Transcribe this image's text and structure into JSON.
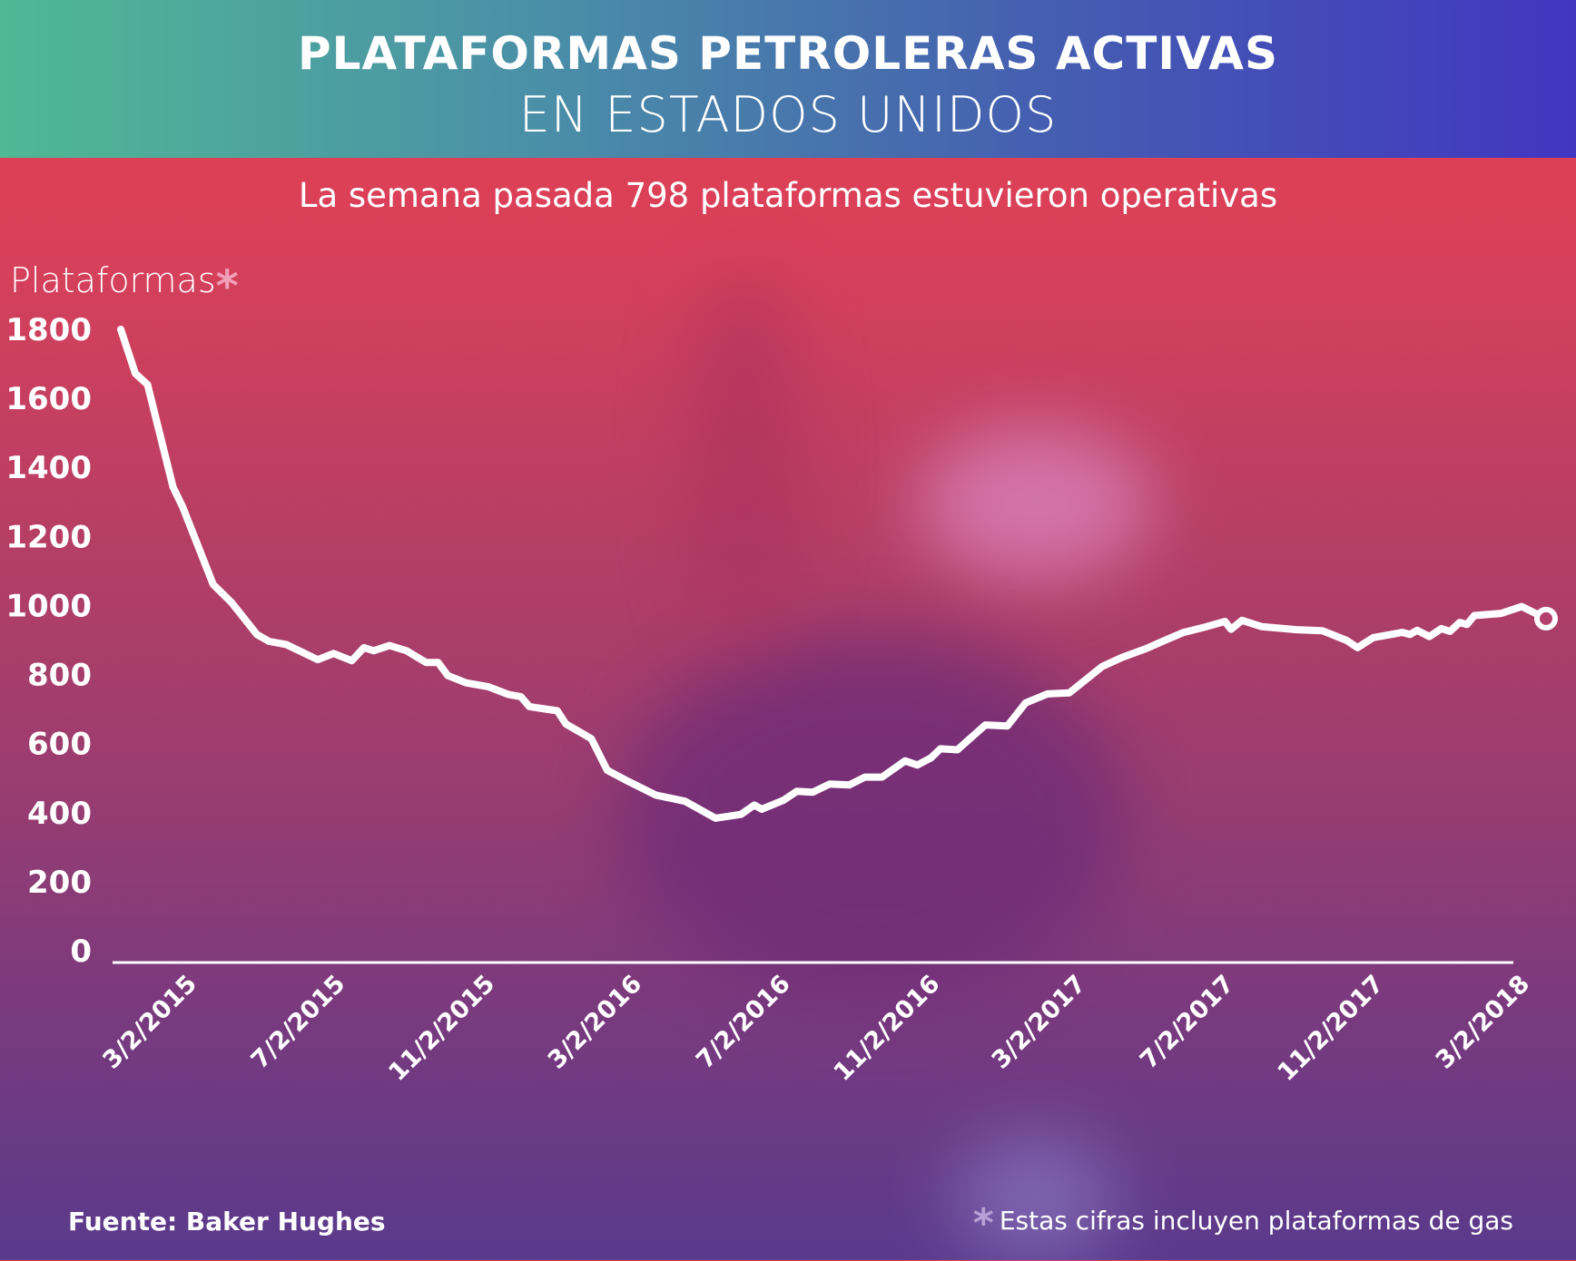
{
  "header": {
    "title_line1": "PLATAFORMAS PETROLERAS ACTIVAS",
    "title_line2": "EN ESTADOS UNIDOS"
  },
  "subtitle": "La semana pasada 798 plataformas estuvieron operativas",
  "footer": {
    "source": "Fuente: Baker Hughes",
    "note_marker": "*",
    "note": "Estas cifras incluyen plataformas de gas"
  },
  "colors": {
    "line": "#ffffff",
    "header_start": "#50b894",
    "header_end": "#4236c0",
    "background_top": "#e6404f",
    "background_bottom": "#5a3a8c"
  },
  "chart_data": {
    "type": "line",
    "title": "",
    "ylabel": "Plataformas",
    "ylabel_marker": "*",
    "xlabel": "",
    "ylim": [
      0,
      1800
    ],
    "yticks": [
      "0",
      "200",
      "400",
      "600",
      "800",
      "1000",
      "1200",
      "1400",
      "1600",
      "1800"
    ],
    "xticks": [
      "3/2/2015",
      "7/2/2015",
      "11/2/2015",
      "3/2/2016",
      "7/2/2016",
      "11/2/2016",
      "3/2/2017",
      "7/2/2017",
      "11/2/2017",
      "3/2/2018"
    ],
    "grid": false,
    "end_marker": "hollow-circle",
    "series": [
      {
        "points": [
          [
            "2015-01-02",
            1800
          ],
          [
            "2015-01-14",
            1672
          ],
          [
            "2015-01-24",
            1640
          ],
          [
            "2015-02-14",
            1343
          ],
          [
            "2015-02-22",
            1285
          ],
          [
            "2015-03-19",
            1061
          ],
          [
            "2015-04-03",
            1009
          ],
          [
            "2015-04-24",
            916
          ],
          [
            "2015-05-04",
            896
          ],
          [
            "2015-05-18",
            887
          ],
          [
            "2015-06-13",
            843
          ],
          [
            "2015-06-26",
            861
          ],
          [
            "2015-07-11",
            840
          ],
          [
            "2015-07-21",
            878
          ],
          [
            "2015-07-29",
            869
          ],
          [
            "2015-08-11",
            884
          ],
          [
            "2015-08-25",
            869
          ],
          [
            "2015-09-10",
            835
          ],
          [
            "2015-09-20",
            835
          ],
          [
            "2015-09-28",
            797
          ],
          [
            "2015-10-13",
            776
          ],
          [
            "2015-10-31",
            765
          ],
          [
            "2015-11-17",
            742
          ],
          [
            "2015-11-27",
            736
          ],
          [
            "2015-12-04",
            707
          ],
          [
            "2015-12-27",
            695
          ],
          [
            "2016-01-03",
            657
          ],
          [
            "2016-01-24",
            614
          ],
          [
            "2016-02-06",
            523
          ],
          [
            "2016-02-23",
            491
          ],
          [
            "2016-03-17",
            451
          ],
          [
            "2016-04-10",
            433
          ],
          [
            "2016-05-05",
            384
          ],
          [
            "2016-05-26",
            395
          ],
          [
            "2016-06-06",
            422
          ],
          [
            "2016-06-12",
            410
          ],
          [
            "2016-06-30",
            436
          ],
          [
            "2016-07-11",
            462
          ],
          [
            "2016-07-24",
            459
          ],
          [
            "2016-08-07",
            483
          ],
          [
            "2016-08-23",
            480
          ],
          [
            "2016-09-05",
            503
          ],
          [
            "2016-09-19",
            503
          ],
          [
            "2016-10-08",
            550
          ],
          [
            "2016-10-18",
            538
          ],
          [
            "2016-10-29",
            558
          ],
          [
            "2016-11-06",
            585
          ],
          [
            "2016-11-20",
            582
          ],
          [
            "2016-12-13",
            654
          ],
          [
            "2016-12-31",
            651
          ],
          [
            "2017-01-15",
            718
          ],
          [
            "2017-02-02",
            744
          ],
          [
            "2017-02-20",
            747
          ],
          [
            "2017-03-19",
            823
          ],
          [
            "2017-04-04",
            849
          ],
          [
            "2017-04-24",
            875
          ],
          [
            "2017-05-11",
            901
          ],
          [
            "2017-05-25",
            922
          ],
          [
            "2017-06-10",
            936
          ],
          [
            "2017-06-28",
            954
          ],
          [
            "2017-07-03",
            931
          ],
          [
            "2017-07-12",
            957
          ],
          [
            "2017-07-28",
            939
          ],
          [
            "2017-08-26",
            930
          ],
          [
            "2017-09-16",
            927
          ],
          [
            "2017-10-06",
            899
          ],
          [
            "2017-10-15",
            878
          ],
          [
            "2017-10-28",
            907
          ],
          [
            "2017-11-21",
            922
          ],
          [
            "2017-11-27",
            916
          ],
          [
            "2017-12-03",
            928
          ],
          [
            "2017-12-13",
            910
          ],
          [
            "2017-12-23",
            933
          ],
          [
            "2017-12-30",
            925
          ],
          [
            "2018-01-07",
            951
          ],
          [
            "2018-01-13",
            945
          ],
          [
            "2018-01-19",
            971
          ],
          [
            "2018-02-10",
            977
          ],
          [
            "2018-02-27",
            997
          ],
          [
            "2018-03-19",
            962
          ]
        ]
      }
    ]
  }
}
